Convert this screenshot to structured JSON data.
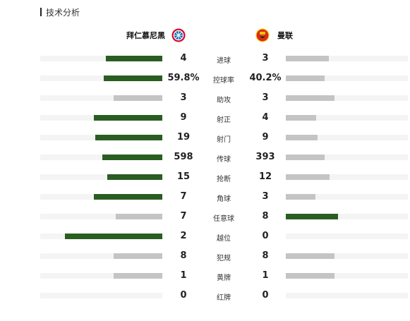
{
  "header": {
    "title": "技术分析"
  },
  "teams": {
    "home": {
      "name": "拜仁慕尼黑",
      "logo": "bayern-munich-logo"
    },
    "away": {
      "name": "曼联",
      "logo": "manchester-united-logo"
    }
  },
  "colors": {
    "leader": "#2a5d21",
    "trailer": "#c4c4c4",
    "track": "#f4f4f4"
  },
  "stats": [
    {
      "label": "进球",
      "home": "4",
      "away": "3",
      "home_frac": 0.46,
      "away_frac": 0.35,
      "leader": "home"
    },
    {
      "label": "控球率",
      "home": "59.8%",
      "away": "40.2%",
      "home_frac": 0.48,
      "away_frac": 0.32,
      "leader": "home"
    },
    {
      "label": "助攻",
      "home": "3",
      "away": "3",
      "home_frac": 0.4,
      "away_frac": 0.4,
      "leader": "none"
    },
    {
      "label": "射正",
      "home": "9",
      "away": "4",
      "home_frac": 0.56,
      "away_frac": 0.25,
      "leader": "home"
    },
    {
      "label": "射门",
      "home": "19",
      "away": "9",
      "home_frac": 0.55,
      "away_frac": 0.26,
      "leader": "home"
    },
    {
      "label": "传球",
      "home": "598",
      "away": "393",
      "home_frac": 0.49,
      "away_frac": 0.32,
      "leader": "home"
    },
    {
      "label": "抢断",
      "home": "15",
      "away": "12",
      "home_frac": 0.45,
      "away_frac": 0.36,
      "leader": "home"
    },
    {
      "label": "角球",
      "home": "7",
      "away": "3",
      "home_frac": 0.56,
      "away_frac": 0.24,
      "leader": "home"
    },
    {
      "label": "任意球",
      "home": "7",
      "away": "8",
      "home_frac": 0.38,
      "away_frac": 0.43,
      "leader": "away"
    },
    {
      "label": "越位",
      "home": "2",
      "away": "0",
      "home_frac": 0.8,
      "away_frac": 0.0,
      "leader": "home"
    },
    {
      "label": "犯规",
      "home": "8",
      "away": "8",
      "home_frac": 0.4,
      "away_frac": 0.4,
      "leader": "none"
    },
    {
      "label": "黄牌",
      "home": "1",
      "away": "1",
      "home_frac": 0.4,
      "away_frac": 0.4,
      "leader": "none"
    },
    {
      "label": "红牌",
      "home": "0",
      "away": "0",
      "home_frac": 0.0,
      "away_frac": 0.0,
      "leader": "none"
    }
  ]
}
